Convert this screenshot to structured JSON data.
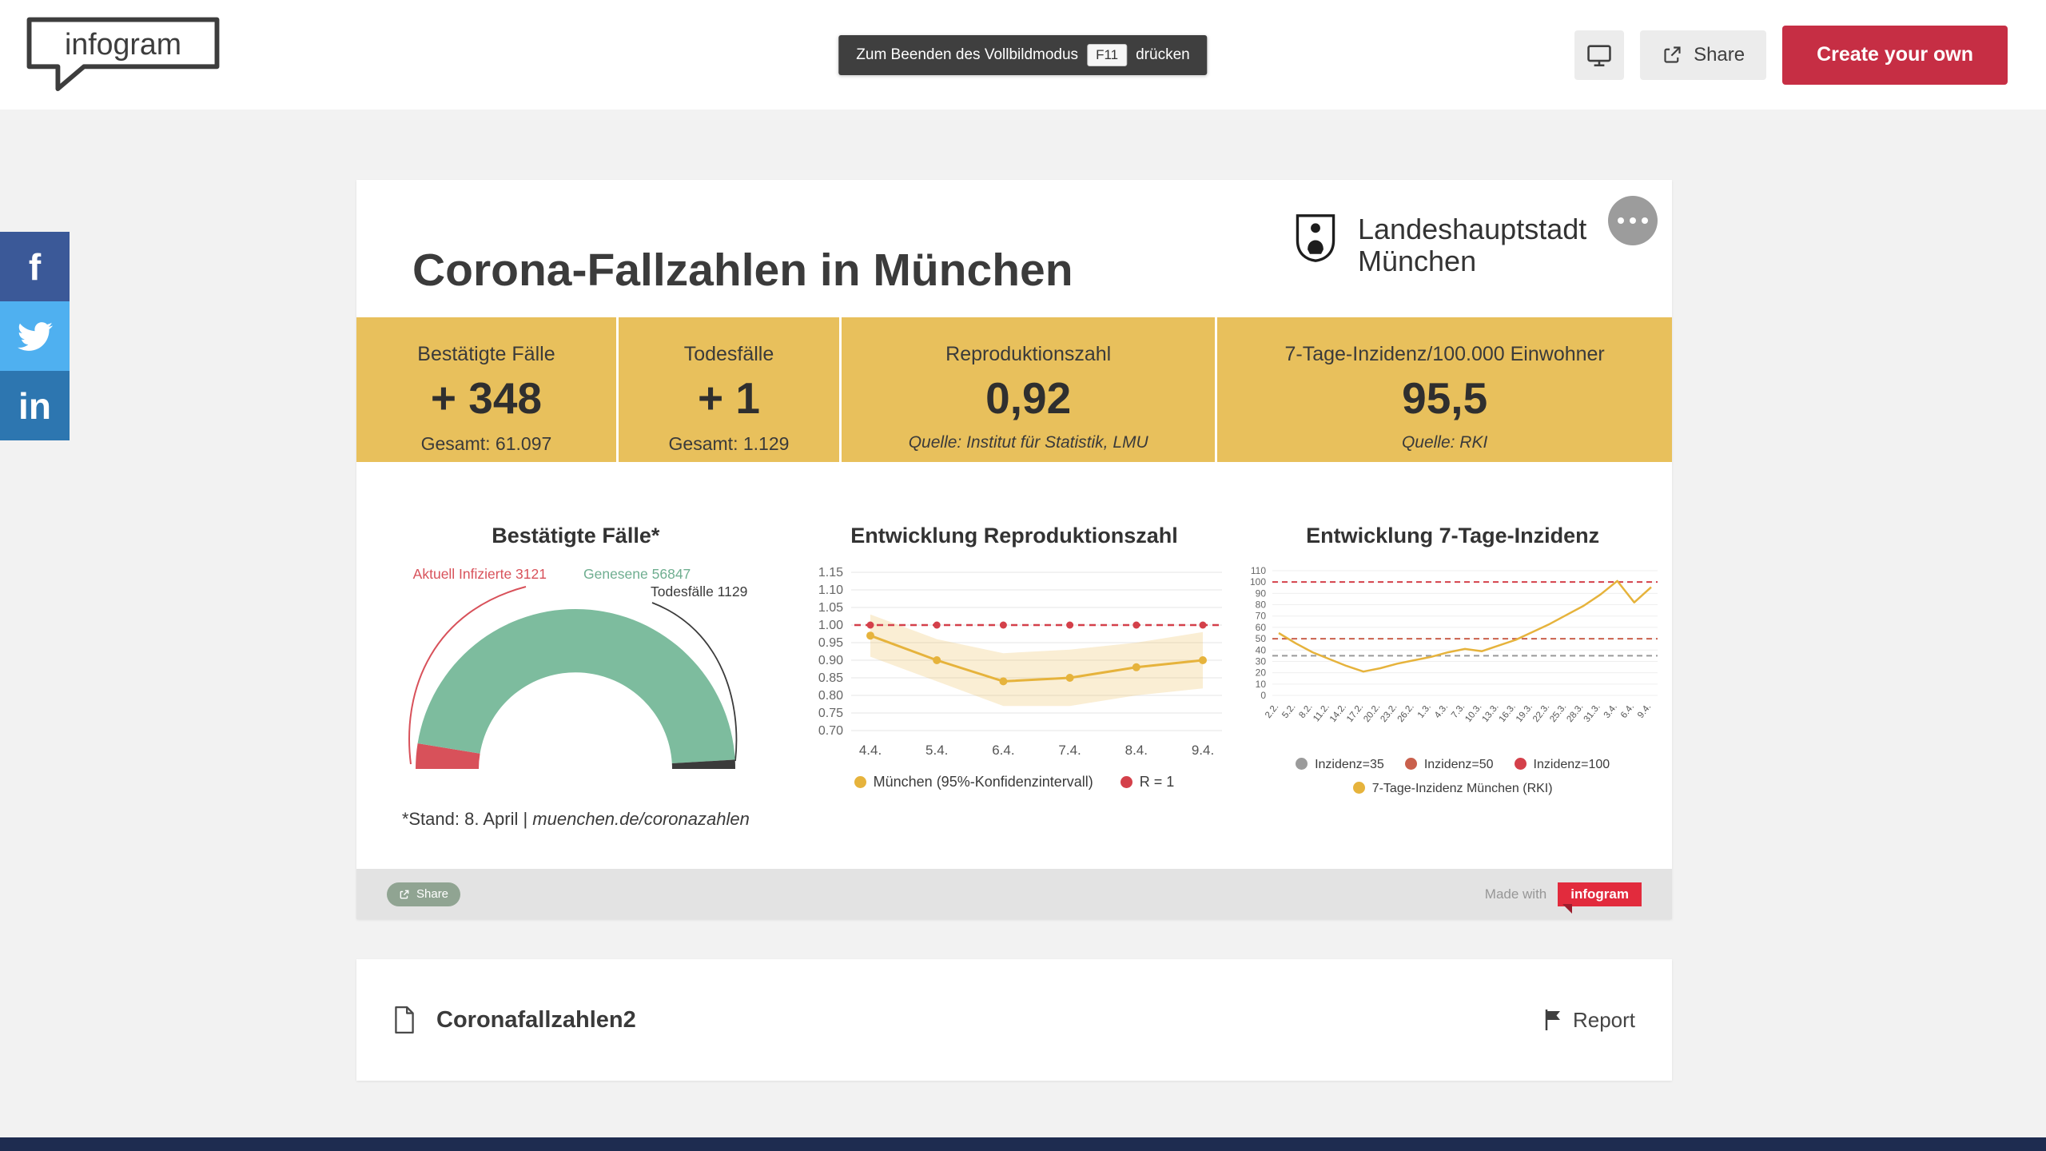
{
  "colors": {
    "accent": "#c62e44",
    "band_yellow": "#e8c05c",
    "badge_red": "#e22b3d",
    "footer_navy": "#1e2c50",
    "embed_share_green": "#90a492"
  },
  "header": {
    "logo": "infogram",
    "fullscreen_hint": {
      "prefix": "Zum Beenden des Vollbildmodus",
      "key": "F11",
      "suffix": "drücken"
    },
    "share": "Share",
    "create": "Create your own"
  },
  "social": [
    {
      "name": "facebook",
      "glyph": "f",
      "color": "#3b5998"
    },
    {
      "name": "twitter",
      "glyph": "",
      "color": "#4fb0f0"
    },
    {
      "name": "linkedin",
      "glyph": "in",
      "color": "#2d76b0"
    }
  ],
  "infographic": {
    "title": "Corona-Fallzahlen in München",
    "publisher": {
      "line1": "Landeshauptstadt",
      "line2": "München"
    },
    "stats": [
      {
        "label": "Bestätigte Fälle",
        "value": "+ 348",
        "sub": "Gesamt: 61.097"
      },
      {
        "label": "Todesfälle",
        "value": "+ 1",
        "sub": "Gesamt: 1.129"
      },
      {
        "label": "Reproduktionszahl",
        "value": "0,92",
        "sub": "Quelle: Institut für Statistik, LMU"
      },
      {
        "label": "7-Tage-Inzidenz/100.000 Einwohner",
        "value": "95,5",
        "sub": "Quelle: RKI"
      }
    ],
    "footnote_prefix": "*Stand: 8. April | ",
    "footnote_link": "muenchen.de/coronazahlen",
    "embed_share": "Share",
    "made_with": "Made with",
    "badge": "infogram"
  },
  "chart_data": [
    {
      "type": "pie",
      "variant": "half-donut",
      "title": "Bestätigte Fälle*",
      "slices": [
        {
          "name": "Aktuell Infizierte",
          "value": 3121,
          "color": "#d8515a"
        },
        {
          "name": "Genesene",
          "value": 56847,
          "color": "#7dbc9e"
        },
        {
          "name": "Todesfälle",
          "value": 1129,
          "color": "#3b3b3b"
        }
      ],
      "slice_labels": [
        "Aktuell Infizierte 3121",
        "Genesene 56847",
        "Todesfälle 1129"
      ]
    },
    {
      "type": "line",
      "title": "Entwicklung Reproduktionszahl",
      "x": [
        "4.4.",
        "5.4.",
        "6.4.",
        "7.4.",
        "8.4.",
        "9.4."
      ],
      "ylim": [
        0.7,
        1.15
      ],
      "yticks": [
        "1.15",
        "1.10",
        "1.05",
        "1.00",
        "0.95",
        "0.90",
        "0.85",
        "0.80",
        "0.75",
        "0.70"
      ],
      "grid": true,
      "legend_position": "bottom",
      "series": [
        {
          "name": "München (95%-Konfidenzintervall)",
          "color": "#e6b33c",
          "values": [
            0.97,
            0.9,
            0.84,
            0.85,
            0.88,
            0.9
          ],
          "band_upper": [
            1.03,
            0.96,
            0.92,
            0.93,
            0.95,
            0.98
          ],
          "band_lower": [
            0.91,
            0.84,
            0.77,
            0.77,
            0.8,
            0.82
          ]
        },
        {
          "name": "R = 1",
          "color": "#d4404a",
          "style": "dashed",
          "values": [
            1.0,
            1.0,
            1.0,
            1.0,
            1.0,
            1.0
          ]
        }
      ]
    },
    {
      "type": "line",
      "title": "Entwicklung 7-Tage-Inzidenz",
      "x": [
        "2.2.",
        "5.2.",
        "8.2.",
        "11.2.",
        "14.2.",
        "17.2.",
        "20.2.",
        "23.2.",
        "26.2.",
        "1.3.",
        "4.3.",
        "7.3.",
        "10.3.",
        "13.3.",
        "16.3.",
        "19.3.",
        "22.3.",
        "25.3.",
        "28.3.",
        "31.3.",
        "3.4.",
        "6.4.",
        "9.4."
      ],
      "ylim": [
        0,
        110
      ],
      "yticks": [
        "110",
        "100",
        "90",
        "80",
        "70",
        "60",
        "50",
        "40",
        "30",
        "20",
        "10",
        "0"
      ],
      "grid": true,
      "legend_position": "bottom",
      "series": [
        {
          "name": "7-Tage-Inzidenz München (RKI)",
          "color": "#e6b33c",
          "values": [
            55,
            46,
            38,
            32,
            26,
            21,
            24,
            28,
            31,
            34,
            38,
            41,
            39,
            44,
            49,
            56,
            63,
            71,
            79,
            89,
            101,
            82,
            95.5
          ]
        }
      ],
      "reference_lines": [
        {
          "label": "Inzidenz=35",
          "value": 35,
          "color": "#9b9b9b"
        },
        {
          "label": "Inzidenz=50",
          "value": 50,
          "color": "#c9604c"
        },
        {
          "label": "Inzidenz=100",
          "value": 100,
          "color": "#d4404a"
        }
      ]
    }
  ],
  "footer_item": {
    "title": "Coronafallzahlen2",
    "report": "Report"
  }
}
